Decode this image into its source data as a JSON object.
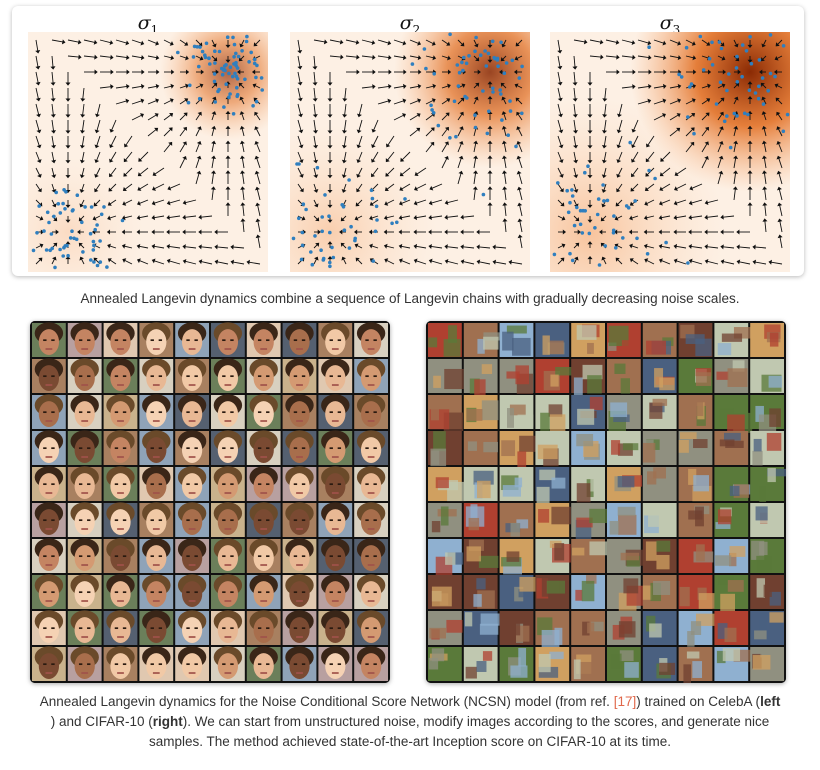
{
  "top_figure": {
    "panels": [
      {
        "symbol": "σ",
        "index": "1",
        "density_strength": 0.35
      },
      {
        "symbol": "σ",
        "index": "2",
        "density_strength": 0.7
      },
      {
        "symbol": "σ",
        "index": "3",
        "density_strength": 1.0
      }
    ],
    "colors": {
      "density_low": "#fdf0e4",
      "density_high": "#8a2a04",
      "points": "#2f7fbf",
      "arrows": "#111111"
    }
  },
  "caption_top": "Annealed Langevin dynamics combine a sequence of Langevin chains with gradually decreasing noise scales.",
  "sample_grids": [
    {
      "dataset": "CelebA",
      "grid_rows": 10,
      "grid_cols": 10
    },
    {
      "dataset": "CIFAR-10",
      "grid_rows": 10,
      "grid_cols": 10
    }
  ],
  "caption_bottom": {
    "line1_pre": "Annealed Langevin dynamics for the Noise Conditional Score Network (NCSN) model (from ref. ",
    "ref": "[17]",
    "line1_post": ") trained on CelebA (",
    "left_word": "left",
    "line2_pre": ") and CIFAR-10 (",
    "right_word": "right",
    "line2_post": "). We can start from unstructured noise, modify images according to the scores, and generate nice",
    "line3": "samples. The method achieved state-of-the-art Inception score on CIFAR-10 at its time."
  }
}
